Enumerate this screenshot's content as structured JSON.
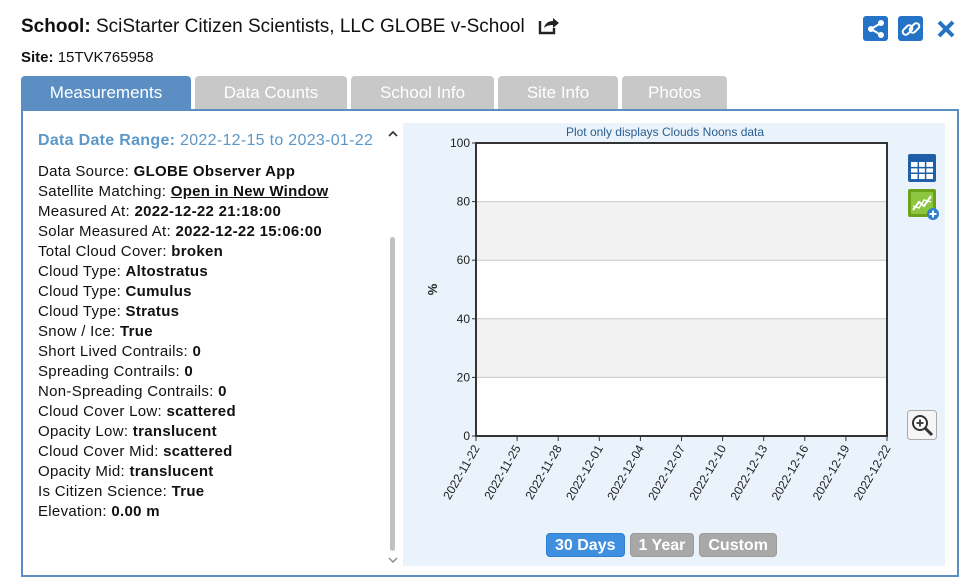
{
  "header": {
    "school_label": "School:",
    "school_name": "SciStarter Citizen Scientists, LLC GLOBE v-School",
    "site_label": "Site:",
    "site_name": "15TVK765958",
    "icons": [
      "external-link-icon",
      "share-icon",
      "link-icon",
      "close-icon"
    ]
  },
  "tabs": [
    {
      "label": "Measurements",
      "active": true
    },
    {
      "label": "Data Counts",
      "active": false
    },
    {
      "label": "School Info",
      "active": false
    },
    {
      "label": "Site Info",
      "active": false
    },
    {
      "label": "Photos",
      "active": false
    }
  ],
  "info": {
    "range_label": "Data Date Range:",
    "range_value": "2022-12-15 to 2023-01-22",
    "rows": [
      {
        "label": "Data Source:",
        "value": "GLOBE Observer App"
      },
      {
        "label": "Satellite Matching:",
        "value": "Open in New Window",
        "link": true
      },
      {
        "label": "Measured At:",
        "value": "2022-12-22 21:18:00"
      },
      {
        "label": "Solar Measured At:",
        "value": "2022-12-22 15:06:00"
      },
      {
        "label": "Total Cloud Cover:",
        "value": "broken"
      },
      {
        "label": "Cloud Type:",
        "value": "Altostratus"
      },
      {
        "label": "Cloud Type:",
        "value": "Cumulus"
      },
      {
        "label": "Cloud Type:",
        "value": "Stratus"
      },
      {
        "label": "Snow / Ice:",
        "value": "True"
      },
      {
        "label": "Short Lived Contrails:",
        "value": "0"
      },
      {
        "label": "Spreading Contrails:",
        "value": "0"
      },
      {
        "label": "Non-Spreading Contrails:",
        "value": "0"
      },
      {
        "label": "Cloud Cover Low:",
        "value": "scattered"
      },
      {
        "label": "Opacity Low:",
        "value": "translucent"
      },
      {
        "label": "Cloud Cover Mid:",
        "value": "scattered"
      },
      {
        "label": "Opacity Mid:",
        "value": "translucent"
      },
      {
        "label": "Is Citizen Science:",
        "value": "True"
      },
      {
        "label": "Elevation:",
        "value": "0.00 m"
      }
    ]
  },
  "chart": {
    "note": "Plot only displays Clouds Noons data",
    "range_buttons": [
      {
        "label": "30 Days",
        "active": true
      },
      {
        "label": "1 Year",
        "active": false
      },
      {
        "label": "Custom",
        "active": false
      }
    ],
    "side_icons": [
      "table-icon",
      "add-chart-icon",
      "zoom-in-icon"
    ]
  },
  "chart_data": {
    "type": "line",
    "title": "Plot only displays Clouds Noons data",
    "ylabel": "%",
    "xlabel": "",
    "ylim": [
      0,
      100
    ],
    "yticks": [
      0,
      20,
      40,
      60,
      80,
      100
    ],
    "x": [
      "2022-11-22",
      "2022-11-25",
      "2022-11-28",
      "2022-12-01",
      "2022-12-04",
      "2022-12-07",
      "2022-12-10",
      "2022-12-13",
      "2022-12-16",
      "2022-12-19",
      "2022-12-22"
    ],
    "series": [],
    "grid": true,
    "colors": {
      "band": "#f2f2f2",
      "frame": "#333333",
      "active_button": "#3f8fe0",
      "tab_active": "#5b8fc3"
    }
  }
}
